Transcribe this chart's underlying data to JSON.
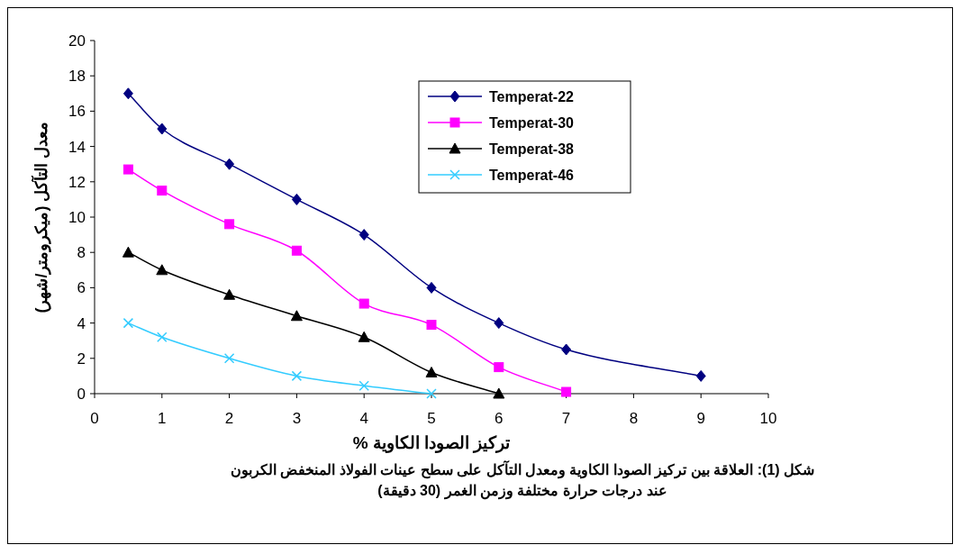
{
  "chart_data": {
    "type": "line",
    "xlabel": "تركيز الصودا الكاوية %",
    "ylabel": "معدل التآكل (ميكرومتر/شهر)",
    "annotations": [
      "شكل (1): العلاقة بين تركيز الصودا الكاوية ومعدل التآكل على سطح عينات الفولاذ المنخفض الكربون عند درجات حرارة مختلفة وزمن الغمر (30 دقيقة)"
    ],
    "xlim": [
      0,
      10
    ],
    "xticks": [
      0,
      1,
      2,
      3,
      4,
      5,
      6,
      7,
      8,
      9,
      10
    ],
    "ylim": [
      0,
      20
    ],
    "yticks": [
      0,
      2,
      4,
      6,
      8,
      10,
      12,
      14,
      16,
      18,
      20
    ],
    "grid": false,
    "legend": "top right",
    "line_style": "solid",
    "series": [
      {
        "name": "Temperat-22",
        "color": "#000080",
        "marker": "diamond",
        "x": [
          0.5,
          1,
          2,
          3,
          4,
          5,
          6,
          7,
          9
        ],
        "values": [
          17,
          15,
          13,
          11,
          9,
          6,
          4,
          2.5,
          1
        ]
      },
      {
        "name": "Temperat-30",
        "color": "#ff00ff",
        "marker": "square",
        "x": [
          0.5,
          1,
          2,
          3,
          4,
          5,
          6,
          7
        ],
        "values": [
          12.7,
          11.5,
          9.6,
          8.1,
          5.1,
          3.9,
          1.5,
          0.1
        ]
      },
      {
        "name": "Temperat-38",
        "color": "#000000",
        "marker": "triangle",
        "x": [
          0.5,
          1,
          2,
          3,
          4,
          5,
          6
        ],
        "values": [
          8,
          7,
          5.6,
          4.4,
          3.2,
          1.2,
          0
        ]
      },
      {
        "name": "Temperat-46",
        "color": "#33ccff",
        "marker": "cross",
        "x": [
          0.5,
          1,
          2,
          3,
          4,
          5
        ],
        "values": [
          4,
          3.2,
          2,
          1,
          0.45,
          0
        ]
      }
    ]
  }
}
